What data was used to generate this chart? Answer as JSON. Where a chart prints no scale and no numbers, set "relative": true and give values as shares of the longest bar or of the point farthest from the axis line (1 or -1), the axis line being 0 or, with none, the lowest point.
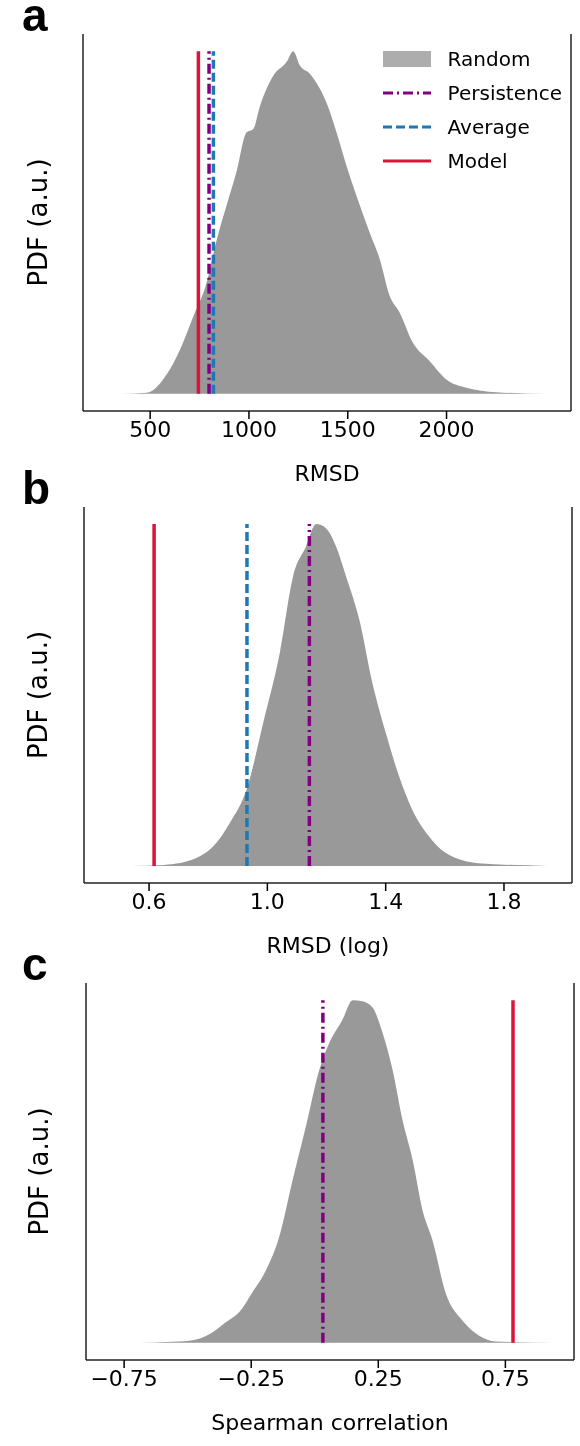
{
  "chart_data": [
    {
      "type": "area",
      "title": "a",
      "xlabel": "RMSD",
      "ylabel": "PDF (a.u.)",
      "relative": true,
      "tick_labels": "x",
      "legend": "top right",
      "xlim": [
        160,
        2630
      ],
      "xticks": [
        500,
        1000,
        1500,
        2000
      ],
      "series": [
        {
          "name": "Random",
          "color": "#999999",
          "x": [
            348,
            483,
            584,
            652,
            719,
            786,
            837,
            887,
            938,
            988,
            1022,
            1056,
            1123,
            1190,
            1224,
            1258,
            1308,
            1359,
            1392,
            1443,
            1493,
            1544,
            1611,
            1662,
            1712,
            1763,
            1830,
            1914,
            1999,
            2100,
            2251,
            2521
          ],
          "values": [
            0,
            0.003,
            0.057,
            0.13,
            0.227,
            0.325,
            0.45,
            0.55,
            0.65,
            0.763,
            0.773,
            0.84,
            0.928,
            0.968,
            1,
            0.958,
            0.934,
            0.89,
            0.85,
            0.763,
            0.666,
            0.578,
            0.47,
            0.393,
            0.286,
            0.237,
            0.149,
            0.096,
            0.042,
            0.018,
            0.005,
            0
          ]
        },
        {
          "type": "line",
          "name": "Persistence",
          "color": "#800080",
          "line_style": "dashdot",
          "x": [
            798,
            798
          ],
          "values": [
            0,
            1
          ]
        },
        {
          "type": "line",
          "name": "Average",
          "color": "#1f77b4",
          "line_style": "dashed",
          "x": [
            820,
            820
          ],
          "values": [
            0,
            1
          ]
        },
        {
          "type": "line",
          "name": "Model",
          "color": "#dc143c",
          "line_style": "solid",
          "x": [
            744,
            744
          ],
          "values": [
            0,
            1
          ]
        }
      ]
    },
    {
      "type": "area",
      "title": "b",
      "xlabel": "RMSD (log)",
      "ylabel": "PDF (a.u.)",
      "relative": true,
      "tick_labels": "x",
      "xlim": [
        0.38,
        2.03
      ],
      "xticks": [
        0.6,
        {
          "value": 1,
          "label": "1.0"
        },
        1.4,
        1.8
      ],
      "series": [
        {
          "color": "#999999",
          "x": [
            0.538,
            0.65,
            0.762,
            0.818,
            0.874,
            0.93,
            0.986,
            1.042,
            1.087,
            1.131,
            1.165,
            1.198,
            1.232,
            1.266,
            1.311,
            1.355,
            1.4,
            1.445,
            1.489,
            1.545,
            1.601,
            1.713,
            1.948
          ],
          "values": [
            0,
            0.003,
            0.024,
            0.058,
            0.127,
            0.224,
            0.419,
            0.623,
            0.847,
            0.935,
            1,
            0.988,
            0.935,
            0.847,
            0.72,
            0.535,
            0.39,
            0.263,
            0.166,
            0.088,
            0.039,
            0.008,
            0
          ]
        },
        {
          "type": "line",
          "color": "#800080",
          "line_style": "dashdot",
          "x": [
            1.142,
            1.142
          ],
          "values": [
            0,
            1
          ]
        },
        {
          "type": "line",
          "color": "#1f77b4",
          "line_style": "dashed",
          "x": [
            0.931,
            0.931
          ],
          "values": [
            0,
            1
          ]
        },
        {
          "type": "line",
          "color": "#dc143c",
          "line_style": "solid",
          "x": [
            0.617,
            0.617
          ],
          "values": [
            0,
            1
          ]
        }
      ]
    },
    {
      "type": "area",
      "title": "c",
      "xlabel": "Spearman correlation",
      "ylabel": "PDF (a.u.)",
      "relative": true,
      "tick_labels": "x",
      "xlim": [
        -0.9,
        1.02
      ],
      "xticks": [
        -0.75,
        -0.25,
        0.25,
        0.75
      ],
      "series": [
        {
          "color": "#999999",
          "x": [
            -0.743,
            -0.533,
            -0.455,
            -0.402,
            -0.35,
            -0.297,
            -0.245,
            -0.192,
            -0.14,
            -0.087,
            -0.035,
            0.018,
            0.057,
            0.109,
            0.149,
            0.188,
            0.228,
            0.267,
            0.306,
            0.345,
            0.385,
            0.424,
            0.463,
            0.516,
            0.581,
            0.647,
            0.712,
            0.935
          ],
          "values": [
            0,
            0.004,
            0.012,
            0.031,
            0.06,
            0.09,
            0.148,
            0.212,
            0.309,
            0.475,
            0.631,
            0.797,
            0.875,
            0.943,
            1,
            0.997,
            0.978,
            0.904,
            0.797,
            0.651,
            0.534,
            0.387,
            0.3,
            0.143,
            0.065,
            0.021,
            0.004,
            0
          ]
        },
        {
          "type": "line",
          "color": "#800080",
          "line_style": "dashdot",
          "x": [
            0.032,
            0.032
          ],
          "values": [
            0,
            1
          ]
        },
        {
          "type": "line",
          "color": "#dc143c",
          "line_style": "solid",
          "x": [
            0.78,
            0.78
          ],
          "values": [
            0,
            1
          ]
        }
      ]
    }
  ]
}
